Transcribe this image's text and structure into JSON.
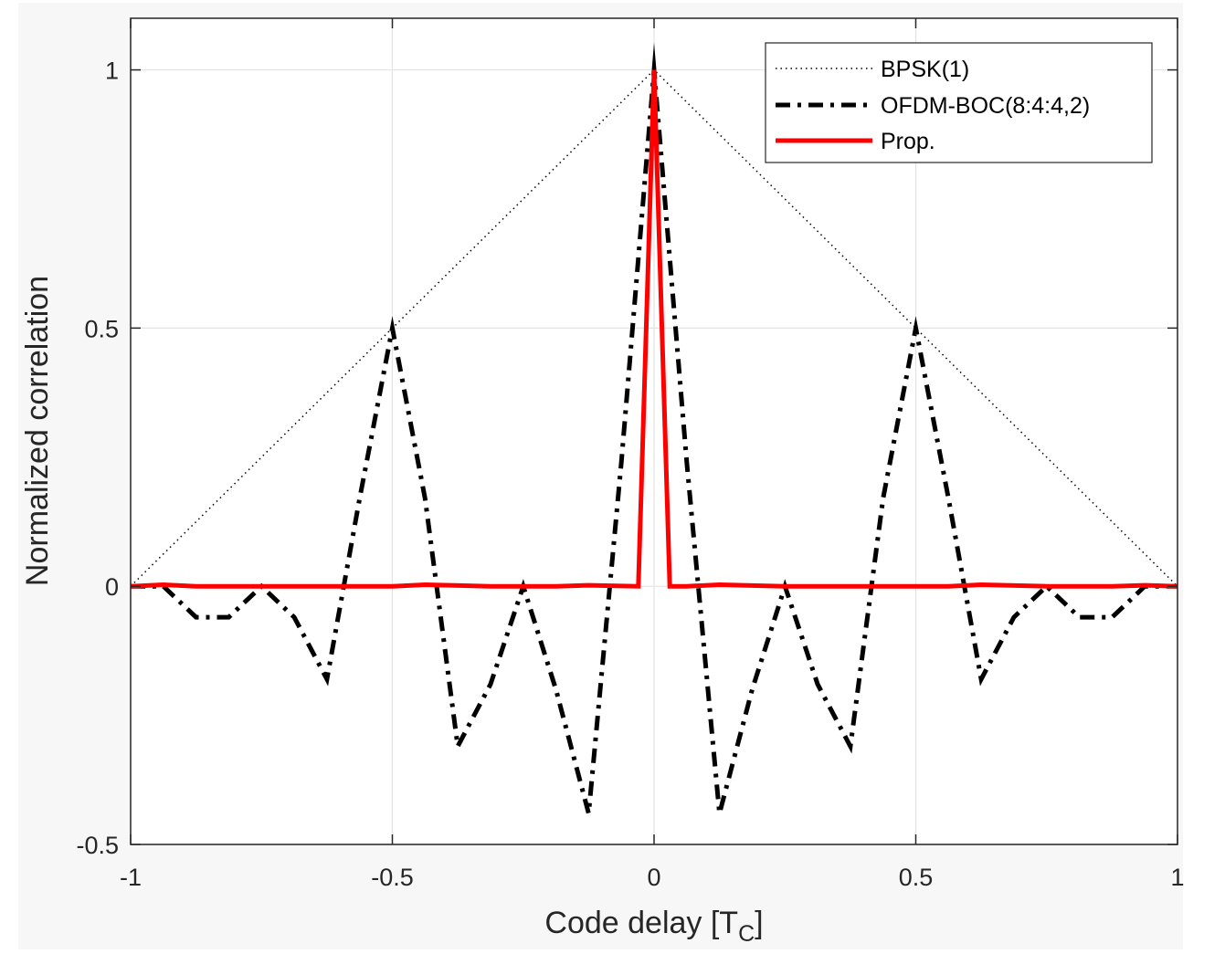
{
  "chart_data": {
    "type": "line",
    "xlabel": "Code delay [T",
    "xlabel_subscript": "C",
    "xlabel_suffix": "]",
    "ylabel": "Normalized correlation",
    "xlim": [
      -1,
      1
    ],
    "ylim": [
      -0.5,
      1.1
    ],
    "xticks": [
      -1,
      -0.5,
      0,
      0.5,
      1
    ],
    "xtick_labels": [
      "-1",
      "-0.5",
      "0",
      "0.5",
      "1"
    ],
    "yticks": [
      -0.5,
      0,
      0.5,
      1
    ],
    "ytick_labels": [
      "-0.5",
      "0",
      "0.5",
      "1"
    ],
    "grid": true,
    "legend_position": "top-right",
    "series": [
      {
        "name": "BPSK(1)",
        "color": "#000000",
        "style": "dotted",
        "x": [
          -1,
          0,
          1
        ],
        "y": [
          0,
          1,
          0
        ]
      },
      {
        "name": "OFDM-BOC(8:4:4,2)",
        "color": "#000000",
        "style": "dashdot",
        "x": [
          -1,
          -0.9375,
          -0.875,
          -0.8125,
          -0.75,
          -0.6875,
          -0.625,
          -0.5625,
          -0.5,
          -0.4375,
          -0.375,
          -0.3125,
          -0.25,
          -0.1875,
          -0.125,
          -0.0625,
          0,
          0.0625,
          0.125,
          0.1875,
          0.25,
          0.3125,
          0.375,
          0.4375,
          0.5,
          0.5625,
          0.625,
          0.6875,
          0.75,
          0.8125,
          0.875,
          0.9375,
          1
        ],
        "y": [
          0,
          0,
          -0.06,
          -0.06,
          0,
          -0.06,
          -0.18,
          0.17,
          0.5,
          0.17,
          -0.31,
          -0.19,
          0,
          -0.2,
          -0.44,
          0.24,
          1,
          0.24,
          -0.44,
          -0.2,
          0,
          -0.19,
          -0.31,
          0.17,
          0.5,
          0.17,
          -0.18,
          -0.06,
          0,
          -0.06,
          -0.06,
          0,
          0
        ]
      },
      {
        "name": "Prop.",
        "color": "#ff0000",
        "style": "solid",
        "x": [
          -1,
          -0.9375,
          -0.875,
          -0.75,
          -0.625,
          -0.5,
          -0.4375,
          -0.3125,
          -0.1875,
          -0.125,
          -0.03,
          0,
          0.03,
          0.0625,
          0.125,
          0.25,
          0.375,
          0.5,
          0.5625,
          0.625,
          0.75,
          0.875,
          0.9375,
          1
        ],
        "y": [
          0,
          0.003,
          0,
          0,
          0,
          0,
          0.003,
          0,
          0,
          0.002,
          0,
          1,
          0,
          0,
          0.003,
          0,
          0,
          0,
          0,
          0.003,
          0,
          0,
          0.002,
          0
        ]
      }
    ]
  }
}
